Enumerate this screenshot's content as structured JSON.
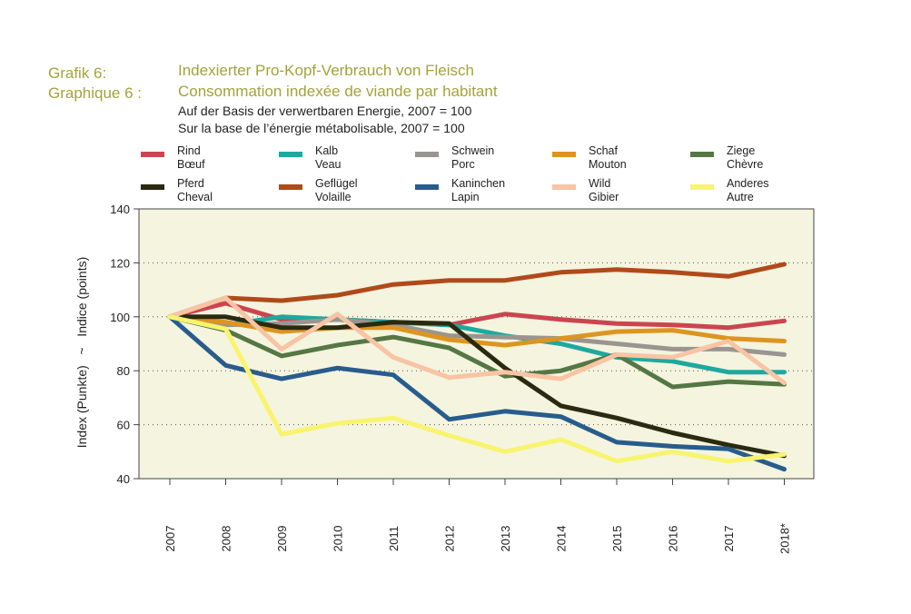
{
  "header": {
    "label_de": "Grafik 6:",
    "label_fr": "Graphique 6 :",
    "title_de": "Indexierter Pro-Kopf-Verbrauch von Fleisch",
    "title_fr": "Consommation indexée de viande par habitant",
    "subtitle_de": "Auf der Basis der verwertbaren Energie, 2007 = 100",
    "subtitle_fr": "Sur la base de l’énergie métabolisable, 2007 = 100"
  },
  "colors": {
    "title": "#a3a33a",
    "plot_background": "#f4f4df"
  },
  "chart_data": {
    "type": "line",
    "ylabel": "Index (Punkte)   ~   Indice (points)",
    "ylim": [
      40,
      140
    ],
    "yticks": [
      "40",
      "60",
      "80",
      "100",
      "120",
      "140"
    ],
    "grid": "horizontal dotted",
    "legend": "top",
    "x": [
      "2007",
      "2008",
      "2009",
      "2010",
      "2011",
      "2012",
      "2013",
      "2014",
      "2015",
      "2016",
      "2017",
      "2018*"
    ],
    "series": [
      {
        "name_de": "Rind",
        "name_fr": "Bœuf",
        "color": "#cc4450",
        "values": [
          100,
          105,
          99,
          99,
          98,
          97,
          101,
          99,
          97.5,
          97,
          96,
          98.5
        ]
      },
      {
        "name_de": "Kalb",
        "name_fr": "Veau",
        "color": "#1fa8a0",
        "values": [
          100,
          97,
          100,
          99,
          98,
          97,
          93,
          90,
          85,
          83.5,
          79.5,
          79.5
        ]
      },
      {
        "name_de": "Schwein",
        "name_fr": "Porc",
        "color": "#9a9590",
        "values": [
          100,
          97,
          97.5,
          99,
          97,
          93,
          92.5,
          92,
          90,
          88,
          88,
          86
        ]
      },
      {
        "name_de": "Schaf",
        "name_fr": "Mouton",
        "color": "#dd9520",
        "values": [
          100,
          98,
          94.5,
          96,
          96,
          91.5,
          89.5,
          92,
          94.5,
          95,
          92,
          91
        ]
      },
      {
        "name_de": "Ziege",
        "name_fr": "Chèvre",
        "color": "#557744",
        "values": [
          100,
          95,
          85.5,
          89.5,
          92.5,
          88.5,
          78,
          80,
          86,
          74,
          76,
          75
        ]
      },
      {
        "name_de": "Pferd",
        "name_fr": "Cheval",
        "color": "#2a2a10",
        "values": [
          100,
          100,
          96,
          96,
          98,
          97.5,
          81,
          67,
          62.5,
          57,
          52.5,
          48.5
        ]
      },
      {
        "name_de": "Geflügel",
        "name_fr": "Volaille",
        "color": "#b04a1a",
        "values": [
          100,
          107,
          106,
          108,
          112,
          113.5,
          113.5,
          116.5,
          117.5,
          116.5,
          115,
          119.5
        ]
      },
      {
        "name_de": "Kaninchen",
        "name_fr": "Lapin",
        "color": "#285c8c",
        "values": [
          100,
          82,
          77,
          81,
          78.5,
          62,
          65,
          63,
          53.5,
          52,
          51,
          43.5
        ]
      },
      {
        "name_de": "Wild",
        "name_fr": "Gibier",
        "color": "#f8c4a4",
        "values": [
          100,
          107,
          88,
          101,
          85,
          77.5,
          79.5,
          77,
          86,
          85,
          91,
          75.5
        ]
      },
      {
        "name_de": "Anderes",
        "name_fr": "Autre",
        "color": "#f8f46e",
        "values": [
          100,
          95.5,
          56.5,
          60.5,
          62.5,
          56,
          50,
          54.5,
          46.5,
          50,
          46.5,
          49
        ]
      }
    ]
  }
}
